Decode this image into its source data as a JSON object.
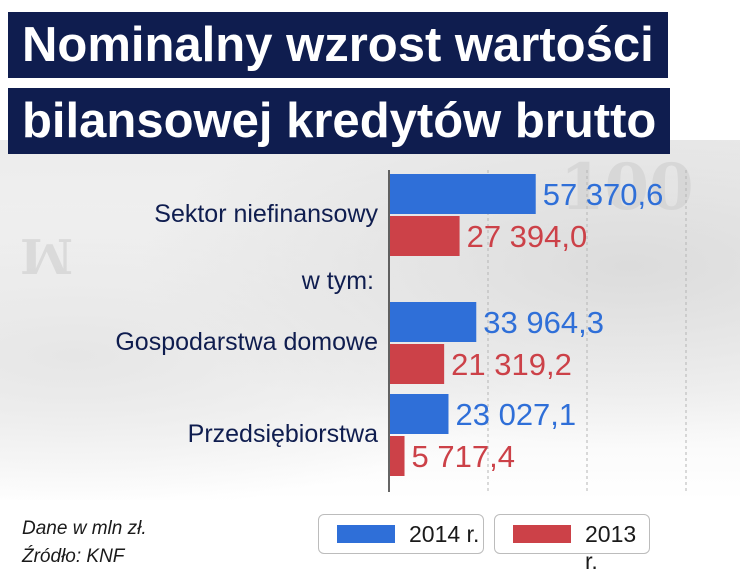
{
  "title": {
    "line1": "Nominalny wzrost wartości",
    "line2": "bilansowej kredytów brutto"
  },
  "chart_data": {
    "type": "bar",
    "orientation": "horizontal",
    "categories": [
      "Sektor niefinansowy",
      "Gospodarstwa domowe",
      "Przedsiębiorstwa"
    ],
    "separator_label": "w tym:",
    "series": [
      {
        "name": "2014 r.",
        "color": "#2f6fd8",
        "values": [
          57370.6,
          33964.3,
          23027.1
        ],
        "value_labels": [
          "57 370,6",
          "33 964,3",
          "23 027,1"
        ]
      },
      {
        "name": "2013 r.",
        "color": "#cc4148",
        "values": [
          27394.0,
          21319.2,
          5717.4
        ],
        "value_labels": [
          "27 394,0",
          "21 319,2",
          "5 717,4"
        ]
      }
    ],
    "gridlines": true
  },
  "footer": {
    "unit_note": "Dane w mln zł.",
    "source": "Źródło: KNF"
  },
  "legend": {
    "item_2014": "2014 r.",
    "item_2013": "2013 r."
  }
}
